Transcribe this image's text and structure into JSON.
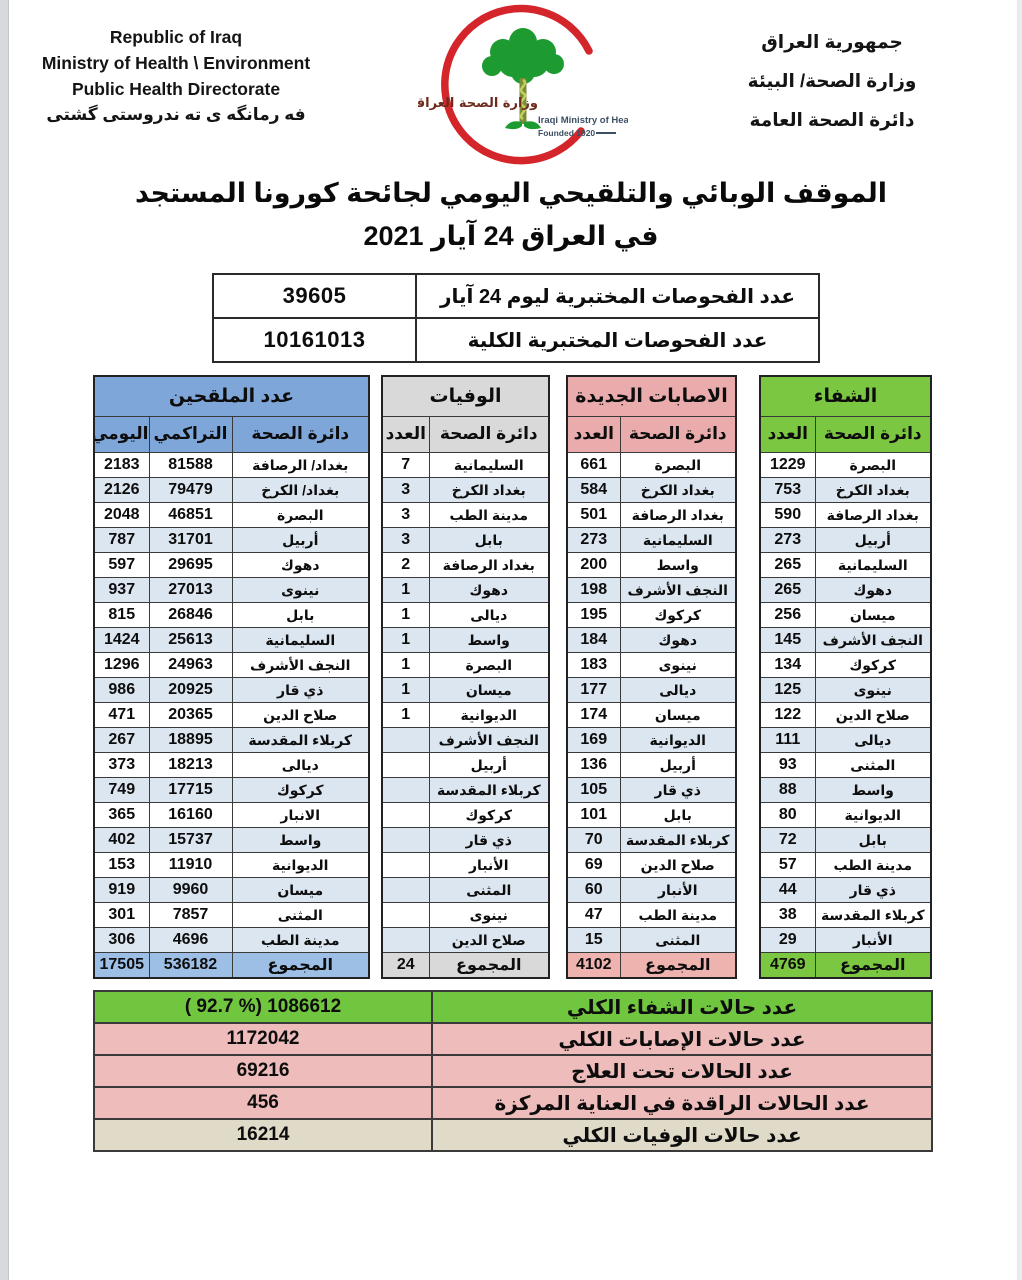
{
  "header": {
    "english": [
      "Republic of Iraq",
      "Ministry of Health \\ Environment",
      "Public Health Directorate"
    ],
    "kurdish": "فه رمانگه ی ته ندروستی گشتی",
    "arabic": [
      "جمهورية العراق",
      "وزارة الصحة/ البيئة",
      "دائرة الصحة العامة"
    ],
    "logo": {
      "arabic_name": "وزارة الصحة العراقية",
      "english_name": "Iraqi Ministry of Health",
      "founded": "Founded 1920"
    }
  },
  "title": {
    "line1": "الموقف الوبائي والتلقيحي اليومي لجائحة كورونا المستجد",
    "line2": "في العراق 24  آيار 2021"
  },
  "tests": {
    "rows": [
      {
        "label": "عدد الفحوصات المختبرية  ليوم 24 آيار",
        "value": "39605"
      },
      {
        "label": "عدد الفحوصات المختبرية الكلية",
        "value": "10161013"
      }
    ]
  },
  "tables": {
    "vaccinated": {
      "title": "عدد الملقحين",
      "columns": {
        "directorate": "دائرة الصحة",
        "cumulative": "التراكمي",
        "daily": "اليومي"
      },
      "col_keys": [
        "directorate",
        "cumulative",
        "daily"
      ],
      "rows": [
        {
          "directorate": "بغداد/ الرصافة",
          "cumulative": "81588",
          "daily": "2183"
        },
        {
          "directorate": "بغداد/ الكرخ",
          "cumulative": "79479",
          "daily": "2126"
        },
        {
          "directorate": "البصرة",
          "cumulative": "46851",
          "daily": "2048"
        },
        {
          "directorate": "أربيل",
          "cumulative": "31701",
          "daily": "787"
        },
        {
          "directorate": "دهوك",
          "cumulative": "29695",
          "daily": "597"
        },
        {
          "directorate": "نينوى",
          "cumulative": "27013",
          "daily": "937"
        },
        {
          "directorate": "بابل",
          "cumulative": "26846",
          "daily": "815"
        },
        {
          "directorate": "السليمانية",
          "cumulative": "25613",
          "daily": "1424"
        },
        {
          "directorate": "النجف الأشرف",
          "cumulative": "24963",
          "daily": "1296"
        },
        {
          "directorate": "ذي قار",
          "cumulative": "20925",
          "daily": "986"
        },
        {
          "directorate": "صلاح الدين",
          "cumulative": "20365",
          "daily": "471"
        },
        {
          "directorate": "كربلاء المقدسة",
          "cumulative": "18895",
          "daily": "267"
        },
        {
          "directorate": "ديالى",
          "cumulative": "18213",
          "daily": "373"
        },
        {
          "directorate": "كركوك",
          "cumulative": "17715",
          "daily": "749"
        },
        {
          "directorate": "الانبار",
          "cumulative": "16160",
          "daily": "365"
        },
        {
          "directorate": "واسط",
          "cumulative": "15737",
          "daily": "402"
        },
        {
          "directorate": "الديوانية",
          "cumulative": "11910",
          "daily": "153"
        },
        {
          "directorate": "ميسان",
          "cumulative": "9960",
          "daily": "919"
        },
        {
          "directorate": "المثنى",
          "cumulative": "7857",
          "daily": "301"
        },
        {
          "directorate": "مدينة الطب",
          "cumulative": "4696",
          "daily": "306"
        }
      ],
      "total": {
        "label": "المجموع",
        "cumulative": "536182",
        "daily": "17505"
      }
    },
    "deaths": {
      "title": "الوفيات",
      "columns": {
        "directorate": "دائرة الصحة",
        "count": "العدد"
      },
      "col_keys": [
        "directorate",
        "count"
      ],
      "rows": [
        {
          "directorate": "السليمانية",
          "count": "7"
        },
        {
          "directorate": "بغداد الكرخ",
          "count": "3"
        },
        {
          "directorate": "مدينة الطب",
          "count": "3"
        },
        {
          "directorate": "بابل",
          "count": "3"
        },
        {
          "directorate": "بغداد الرصافة",
          "count": "2"
        },
        {
          "directorate": "دهوك",
          "count": "1"
        },
        {
          "directorate": "ديالى",
          "count": "1"
        },
        {
          "directorate": "واسط",
          "count": "1"
        },
        {
          "directorate": "البصرة",
          "count": "1"
        },
        {
          "directorate": "ميسان",
          "count": "1"
        },
        {
          "directorate": "الديوانية",
          "count": "1"
        },
        {
          "directorate": "النجف الأشرف",
          "count": ""
        },
        {
          "directorate": "أربيل",
          "count": ""
        },
        {
          "directorate": "كربلاء المقدسة",
          "count": ""
        },
        {
          "directorate": "كركوك",
          "count": ""
        },
        {
          "directorate": "ذي قار",
          "count": ""
        },
        {
          "directorate": "الأنبار",
          "count": ""
        },
        {
          "directorate": "المثنى",
          "count": ""
        },
        {
          "directorate": "نينوى",
          "count": ""
        },
        {
          "directorate": "صلاح الدين",
          "count": ""
        }
      ],
      "total": {
        "label": "المجموع",
        "count": "24"
      }
    },
    "new_cases": {
      "title": "الاصابات الجديدة",
      "columns": {
        "directorate": "دائرة الصحة",
        "count": "العدد"
      },
      "col_keys": [
        "directorate",
        "count"
      ],
      "rows": [
        {
          "directorate": "البصرة",
          "count": "661"
        },
        {
          "directorate": "بغداد الكرخ",
          "count": "584"
        },
        {
          "directorate": "بغداد الرصافة",
          "count": "501"
        },
        {
          "directorate": "السليمانية",
          "count": "273"
        },
        {
          "directorate": "واسط",
          "count": "200"
        },
        {
          "directorate": "النجف الأشرف",
          "count": "198"
        },
        {
          "directorate": "كركوك",
          "count": "195"
        },
        {
          "directorate": "دهوك",
          "count": "184"
        },
        {
          "directorate": "نينوى",
          "count": "183"
        },
        {
          "directorate": "ديالى",
          "count": "177"
        },
        {
          "directorate": "ميسان",
          "count": "174"
        },
        {
          "directorate": "الديوانية",
          "count": "169"
        },
        {
          "directorate": "أربيل",
          "count": "136"
        },
        {
          "directorate": "ذي قار",
          "count": "105"
        },
        {
          "directorate": "بابل",
          "count": "101"
        },
        {
          "directorate": "كربلاء المقدسة",
          "count": "70"
        },
        {
          "directorate": "صلاح الدين",
          "count": "69"
        },
        {
          "directorate": "الأنبار",
          "count": "60"
        },
        {
          "directorate": "مدينة الطب",
          "count": "47"
        },
        {
          "directorate": "المثنى",
          "count": "15"
        }
      ],
      "total": {
        "label": "المجموع",
        "count": "4102"
      }
    },
    "recoveries": {
      "title": "الشفاء",
      "columns": {
        "directorate": "دائرة الصحة",
        "count": "العدد"
      },
      "col_keys": [
        "directorate",
        "count"
      ],
      "rows": [
        {
          "directorate": "البصرة",
          "count": "1229"
        },
        {
          "directorate": "بغداد الكرخ",
          "count": "753"
        },
        {
          "directorate": "بغداد الرصافة",
          "count": "590"
        },
        {
          "directorate": "أربيل",
          "count": "273"
        },
        {
          "directorate": "السليمانية",
          "count": "265"
        },
        {
          "directorate": "دهوك",
          "count": "265"
        },
        {
          "directorate": "ميسان",
          "count": "256"
        },
        {
          "directorate": "النجف الأشرف",
          "count": "145"
        },
        {
          "directorate": "كركوك",
          "count": "134"
        },
        {
          "directorate": "نينوى",
          "count": "125"
        },
        {
          "directorate": "صلاح الدين",
          "count": "122"
        },
        {
          "directorate": "ديالى",
          "count": "111"
        },
        {
          "directorate": "المثنى",
          "count": "93"
        },
        {
          "directorate": "واسط",
          "count": "88"
        },
        {
          "directorate": "الديوانية",
          "count": "80"
        },
        {
          "directorate": "بابل",
          "count": "72"
        },
        {
          "directorate": "مدينة الطب",
          "count": "57"
        },
        {
          "directorate": "ذي قار",
          "count": "44"
        },
        {
          "directorate": "كربلاء المقدسة",
          "count": "38"
        },
        {
          "directorate": "الأنبار",
          "count": "29"
        }
      ],
      "total": {
        "label": "المجموع",
        "count": "4769"
      }
    }
  },
  "summary": {
    "rows": [
      {
        "label": "عدد حالات الشفاء الكلي",
        "value": "( 92.7 %)  1086612",
        "color": "green"
      },
      {
        "label": "عدد حالات الإصابات الكلي",
        "value": "1172042",
        "color": "pink"
      },
      {
        "label": "عدد الحالات تحت العلاج",
        "value": "69216",
        "color": "pink"
      },
      {
        "label": "عدد الحالات الراقدة في العناية المركزة",
        "value": "456",
        "color": "pink"
      },
      {
        "label": "عدد حالات الوفيات الكلي",
        "value": "16214",
        "color": "beige"
      }
    ]
  },
  "colors": {
    "vaccinated_header": "#7ea6d8",
    "vaccinated_total": "#9dbfe6",
    "stripe": "#dce6f1",
    "deaths_header": "#d9d9d9",
    "new_cases_header": "#e9abab",
    "new_cases_total": "#eeb3af",
    "recoveries_header": "#7cc742",
    "summary_green": "#71c63f",
    "summary_pink": "#efbcbc",
    "summary_beige": "#e0dbc9",
    "crescent_red": "#d4252b",
    "tree_green": "#1d9b31"
  }
}
